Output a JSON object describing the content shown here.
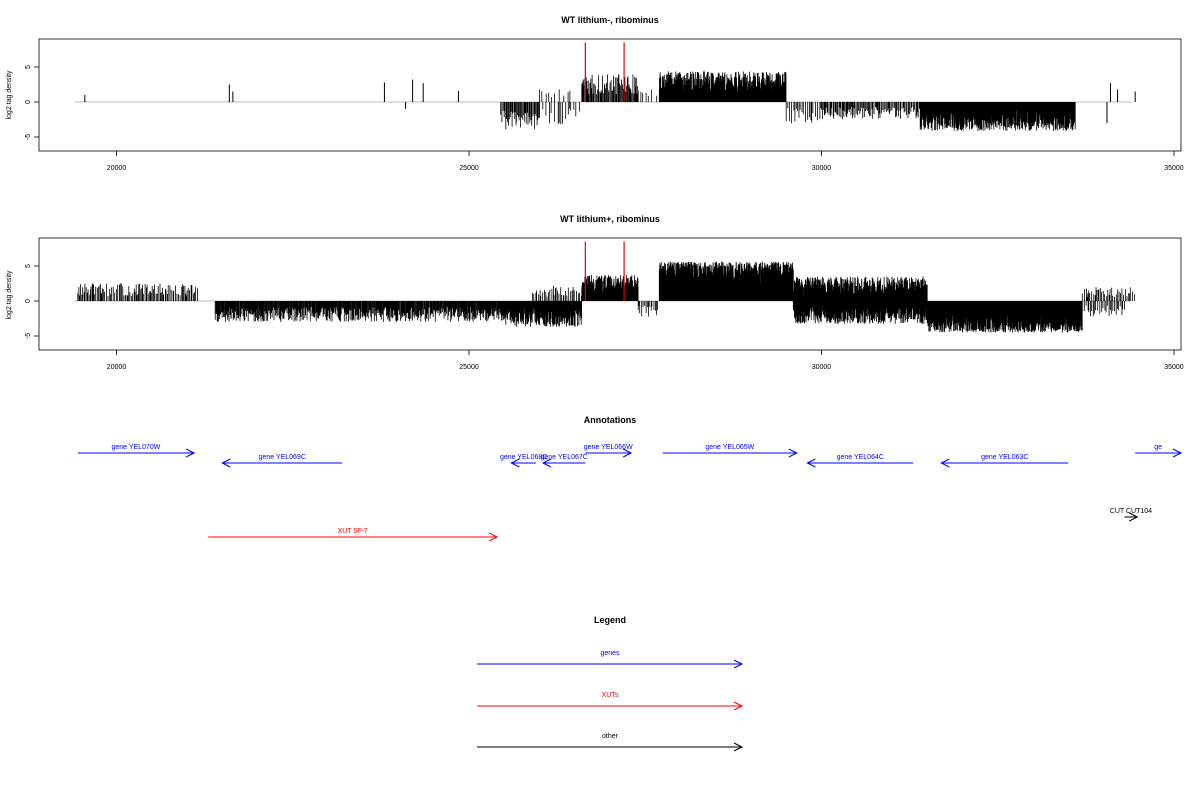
{
  "chart_data": [
    {
      "type": "bar",
      "title": "WT lithium-, ribominus",
      "xlabel": "",
      "ylabel": "log2 tag density",
      "xlim": [
        18900,
        35100
      ],
      "ylim": [
        -7,
        9
      ],
      "x_ticks": [
        20000,
        25000,
        30000,
        35000
      ],
      "y_ticks": [
        -5,
        0,
        5
      ],
      "x_tick_labels": [
        "20000",
        "25000",
        "30000",
        "35000"
      ],
      "y_tick_labels": [
        "-5",
        "0",
        "5"
      ],
      "baseline": {
        "from": 19400,
        "to": 34400,
        "color": "#bbbbbb"
      },
      "bar_color": "#000000",
      "highlight_color": "#e8000b",
      "highlights": [
        {
          "x": 26650,
          "y": 8.5
        },
        {
          "x": 27200,
          "y": 8.5
        }
      ],
      "sparse_bars": [
        {
          "x": 19550,
          "y": 1
        },
        {
          "x": 21600,
          "y": 2.5
        },
        {
          "x": 21650,
          "y": 1.5
        },
        {
          "x": 23800,
          "y": 2.8
        },
        {
          "x": 24100,
          "y": -1
        },
        {
          "x": 24200,
          "y": 3.2
        },
        {
          "x": 24350,
          "y": 2.7
        },
        {
          "x": 24850,
          "y": 1.6
        },
        {
          "x": 34050,
          "y": -3
        },
        {
          "x": 34100,
          "y": 2.7
        },
        {
          "x": 34200,
          "y": 1.8
        },
        {
          "x": 34450,
          "y": 1.5
        }
      ],
      "segments": [
        {
          "from": 25450,
          "to": 26000,
          "sign": -1,
          "amp": 3.2,
          "density": 0.09
        },
        {
          "from": 26000,
          "to": 26450,
          "sign": 1,
          "amp": 1.6,
          "density": 0.02
        },
        {
          "from": 26000,
          "to": 26600,
          "sign": -1,
          "amp": 2.6,
          "density": 0.03
        },
        {
          "from": 26600,
          "to": 27400,
          "sign": 1,
          "amp": 3.2,
          "density": 0.09
        },
        {
          "from": 27400,
          "to": 27700,
          "sign": 1,
          "amp": 1.5,
          "density": 0.02
        },
        {
          "from": 27700,
          "to": 29500,
          "sign": 1,
          "amp": 3.5,
          "density": 0.28
        },
        {
          "from": 29500,
          "to": 30000,
          "sign": -1,
          "amp": 2.5,
          "density": 0.04
        },
        {
          "from": 30000,
          "to": 31400,
          "sign": -1,
          "amp": 2.0,
          "density": 0.07
        },
        {
          "from": 31400,
          "to": 33600,
          "sign": -1,
          "amp": 3.3,
          "density": 0.32
        }
      ],
      "seed": 7
    },
    {
      "type": "bar",
      "title": "WT lithium+, ribominus",
      "xlabel": "",
      "ylabel": "log2 tag density",
      "xlim": [
        18900,
        35100
      ],
      "ylim": [
        -7,
        9
      ],
      "x_ticks": [
        20000,
        25000,
        30000,
        35000
      ],
      "y_ticks": [
        -5,
        0,
        5
      ],
      "x_tick_labels": [
        "20000",
        "25000",
        "30000",
        "35000"
      ],
      "y_tick_labels": [
        "-5",
        "0",
        "5"
      ],
      "baseline": {
        "from": 19400,
        "to": 34400,
        "color": "#bbbbbb"
      },
      "bar_color": "#000000",
      "highlight_color": "#e8000b",
      "highlights": [
        {
          "x": 26650,
          "y": 8.5
        },
        {
          "x": 27200,
          "y": 8.5
        }
      ],
      "sparse_bars": [],
      "segments": [
        {
          "from": 19450,
          "to": 21150,
          "sign": 1,
          "amp": 2.0,
          "density": 0.06
        },
        {
          "from": 21400,
          "to": 25400,
          "sign": -1,
          "amp": 2.4,
          "density": 0.12
        },
        {
          "from": 25400,
          "to": 26600,
          "sign": -1,
          "amp": 3.0,
          "density": 0.2
        },
        {
          "from": 25900,
          "to": 26600,
          "sign": 1,
          "amp": 1.8,
          "density": 0.05
        },
        {
          "from": 26600,
          "to": 27400,
          "sign": 1,
          "amp": 3.0,
          "density": 0.22
        },
        {
          "from": 27400,
          "to": 27700,
          "sign": -1,
          "amp": 1.8,
          "density": 0.05
        },
        {
          "from": 27700,
          "to": 29600,
          "sign": 1,
          "amp": 4.5,
          "density": 0.6
        },
        {
          "from": 29600,
          "to": 31500,
          "sign": 1,
          "amp": 2.8,
          "density": 0.22
        },
        {
          "from": 29600,
          "to": 31500,
          "sign": -1,
          "amp": 2.6,
          "density": 0.22
        },
        {
          "from": 31500,
          "to": 33700,
          "sign": -1,
          "amp": 3.6,
          "density": 0.55
        },
        {
          "from": 33700,
          "to": 34450,
          "sign": 1,
          "amp": 1.6,
          "density": 0.05
        },
        {
          "from": 33700,
          "to": 34300,
          "sign": -1,
          "amp": 1.8,
          "density": 0.05
        }
      ],
      "seed": 13
    }
  ],
  "annotations": {
    "title": "Annotations",
    "items": [
      {
        "label": "gene YEL070W",
        "from": 19450,
        "to": 21100,
        "dir": "right",
        "row": 0,
        "color": "#0000ff"
      },
      {
        "label": "gene YEL069C",
        "from": 21500,
        "to": 23200,
        "dir": "left",
        "row": 1,
        "color": "#0000ff"
      },
      {
        "label": "gene YEL068C",
        "from": 25600,
        "to": 25950,
        "dir": "left",
        "row": 1,
        "color": "#0000ff"
      },
      {
        "label": "gene YEL067C",
        "from": 26050,
        "to": 26650,
        "dir": "left",
        "row": 1,
        "color": "#0000ff"
      },
      {
        "label": "gene YEL066W",
        "from": 26650,
        "to": 27300,
        "dir": "right",
        "row": 0,
        "color": "#0000ff"
      },
      {
        "label": "gene YEL065W",
        "from": 27750,
        "to": 29650,
        "dir": "right",
        "row": 0,
        "color": "#0000ff"
      },
      {
        "label": "gene YEL064C",
        "from": 29800,
        "to": 31300,
        "dir": "left",
        "row": 1,
        "color": "#0000ff"
      },
      {
        "label": "gene YEL063C",
        "from": 31700,
        "to": 33500,
        "dir": "left",
        "row": 1,
        "color": "#0000ff"
      },
      {
        "label": "ge",
        "from": 34450,
        "to": 35100,
        "dir": "right",
        "row": 0,
        "color": "#0000ff"
      },
      {
        "label": "CUT CUT104",
        "from": 34300,
        "to": 34480,
        "dir": "right",
        "row": 2,
        "color": "#000000"
      },
      {
        "label": "XUT 5F-7",
        "from": 21300,
        "to": 25400,
        "dir": "right",
        "row": 3,
        "color": "#ff0000"
      }
    ]
  },
  "legend": {
    "title": "Legend",
    "items": [
      {
        "label": "genes",
        "color": "#0000ff"
      },
      {
        "label": "XUTs",
        "color": "#ff0000"
      },
      {
        "label": "other",
        "color": "#000000"
      }
    ]
  }
}
